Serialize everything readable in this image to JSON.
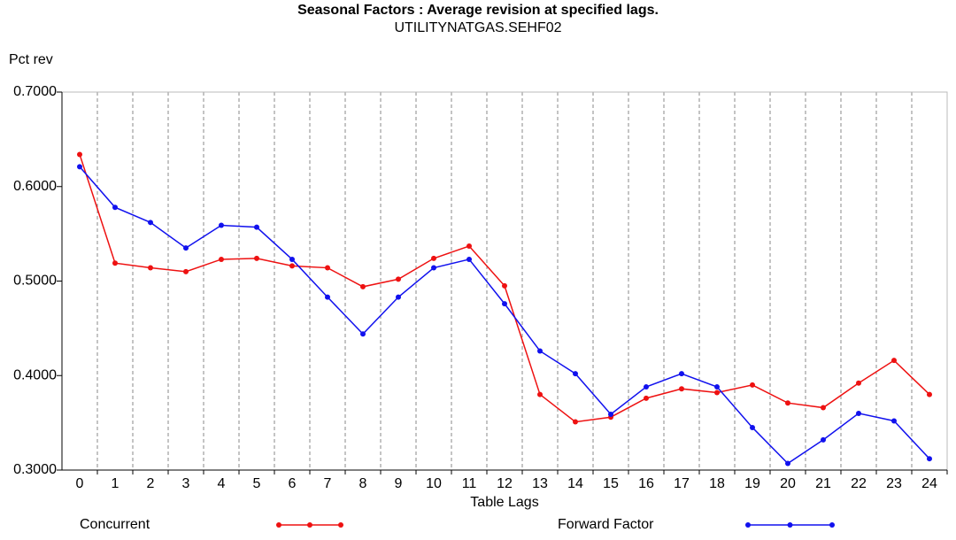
{
  "chart_data": {
    "type": "line",
    "title": "Seasonal Factors : Average revision at specified lags.",
    "subtitle": "UTILITYNATGAS.SEHF02",
    "y_label": "Pct rev",
    "x_label": "Table Lags",
    "categories": [
      "0",
      "1",
      "2",
      "3",
      "4",
      "5",
      "6",
      "7",
      "8",
      "9",
      "10",
      "11",
      "12",
      "13",
      "14",
      "15",
      "16",
      "17",
      "18",
      "19",
      "20",
      "21",
      "22",
      "23",
      "24"
    ],
    "series": [
      {
        "name": "Concurrent",
        "color": "#ee1111",
        "values": [
          0.634,
          0.519,
          0.514,
          0.51,
          0.523,
          0.524,
          0.516,
          0.514,
          0.494,
          0.502,
          0.524,
          0.537,
          0.495,
          0.38,
          0.351,
          0.356,
          0.376,
          0.386,
          0.382,
          0.39,
          0.371,
          0.366,
          0.392,
          0.416,
          0.38
        ]
      },
      {
        "name": "Forward Factor",
        "color": "#1111ee",
        "values": [
          0.621,
          0.578,
          0.562,
          0.535,
          0.559,
          0.557,
          0.523,
          0.483,
          0.444,
          0.483,
          0.514,
          0.523,
          0.476,
          0.426,
          0.402,
          0.359,
          0.388,
          0.402,
          0.388,
          0.345,
          0.307,
          0.332,
          0.36,
          0.352,
          0.312
        ]
      }
    ],
    "ylim": [
      0.3,
      0.7
    ],
    "yticks": [
      {
        "value": 0.3,
        "label": "0.3000"
      },
      {
        "value": 0.4,
        "label": "0.4000"
      },
      {
        "value": 0.5,
        "label": "0.5000"
      },
      {
        "value": 0.6,
        "label": "0.6000"
      },
      {
        "value": 0.7,
        "label": "0.7000"
      }
    ],
    "grid": true
  }
}
